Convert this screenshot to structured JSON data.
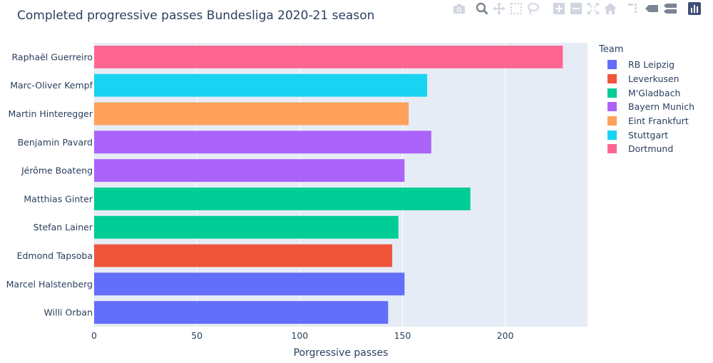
{
  "chart_data": {
    "type": "bar",
    "orientation": "horizontal",
    "title": "Completed progressive passes Bundesliga 2020-21 season",
    "xlabel": "Porgressive passes",
    "ylabel": "",
    "xlim": [
      0,
      240
    ],
    "xticks": [
      0,
      50,
      100,
      150,
      200
    ],
    "grid": true,
    "legend": {
      "title": "Team",
      "placement": "right"
    },
    "teams": [
      {
        "name": "RB Leipzig",
        "color": "#636efa"
      },
      {
        "name": "Leverkusen",
        "color": "#ef553b"
      },
      {
        "name": "M'Gladbach",
        "color": "#00cc96"
      },
      {
        "name": "Bayern Munich",
        "color": "#ab63fa"
      },
      {
        "name": "Eint Frankfurt",
        "color": "#ffa15a"
      },
      {
        "name": "Stuttgart",
        "color": "#19d3f3"
      },
      {
        "name": "Dortmund",
        "color": "#ff6692"
      }
    ],
    "bars": [
      {
        "player": "Raphaël Guerreiro",
        "team": "Dortmund",
        "value": 228
      },
      {
        "player": "Marc-Oliver Kempf",
        "team": "Stuttgart",
        "value": 162
      },
      {
        "player": "Martin Hinteregger",
        "team": "Eint Frankfurt",
        "value": 153
      },
      {
        "player": "Benjamin Pavard",
        "team": "Bayern Munich",
        "value": 164
      },
      {
        "player": "Jérôme Boateng",
        "team": "Bayern Munich",
        "value": 151
      },
      {
        "player": "Matthias Ginter",
        "team": "M'Gladbach",
        "value": 183
      },
      {
        "player": "Stefan Lainer",
        "team": "M'Gladbach",
        "value": 148
      },
      {
        "player": "Edmond Tapsoba",
        "team": "Leverkusen",
        "value": 145
      },
      {
        "player": "Marcel Halstenberg",
        "team": "RB Leipzig",
        "value": 151
      },
      {
        "player": "Willi Orban",
        "team": "RB Leipzig",
        "value": 143
      }
    ]
  },
  "modebar": {
    "icons": [
      "camera-icon",
      "zoom-icon",
      "pan-icon",
      "box-select-icon",
      "lasso-icon",
      "zoom-in-icon",
      "zoom-out-icon",
      "autoscale-icon",
      "reset-axes-icon",
      "spike-lines-icon",
      "hover-closest-icon",
      "hover-compare-icon",
      "plotly-logo-icon"
    ],
    "colors": {
      "default": "#d0d6e0",
      "active": "#7c8494",
      "logo": "#3f4f75"
    }
  }
}
